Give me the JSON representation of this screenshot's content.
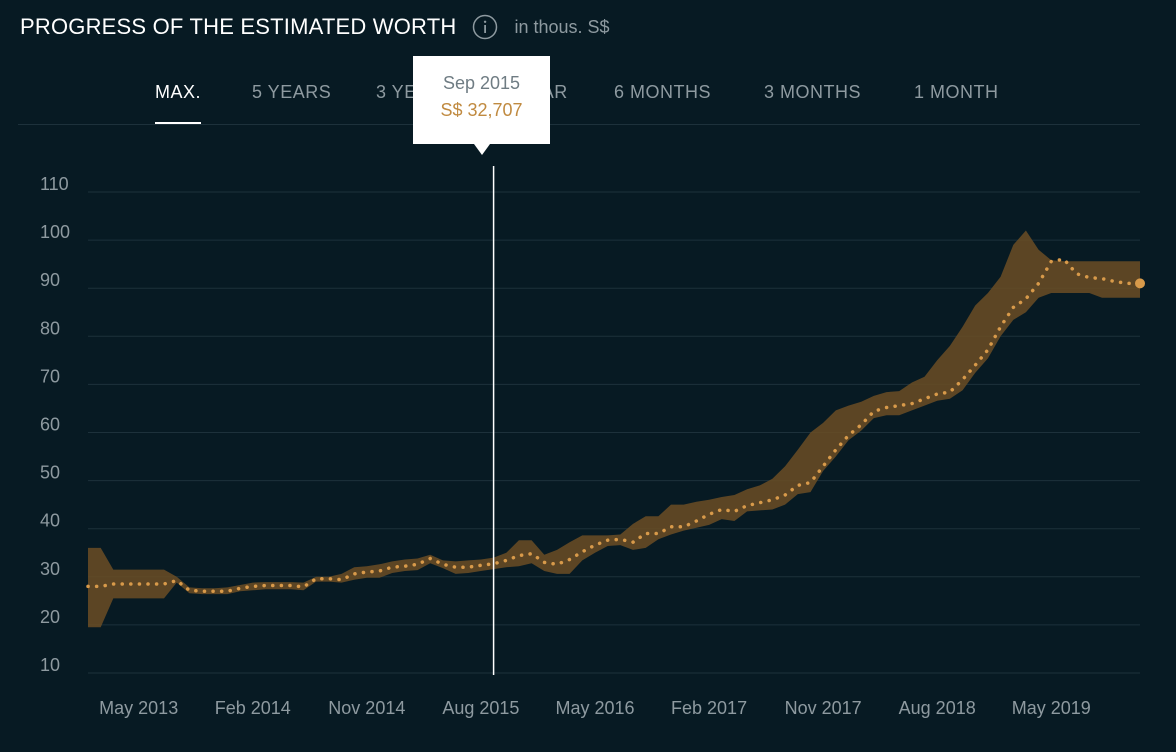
{
  "header": {
    "title": "PROGRESS OF THE ESTIMATED WORTH",
    "info_icon": "info-icon",
    "unit": "in thous. S$"
  },
  "tabs": [
    {
      "label": "MAX.",
      "active": true
    },
    {
      "label": "5 YEARS",
      "active": false
    },
    {
      "label": "3 YEARS",
      "active": false
    },
    {
      "label": "1 YEAR",
      "active": false
    },
    {
      "label": "6 MONTHS",
      "active": false
    },
    {
      "label": "3 MONTHS",
      "active": false
    },
    {
      "label": "1 MONTH",
      "active": false
    }
  ],
  "tooltip": {
    "date": "Sep 2015",
    "value": "S$ 32,707"
  },
  "colors": {
    "background": "#071a23",
    "band": "#6b4e25",
    "dots": "#d89a4a",
    "grid": "#1d313b",
    "text_muted": "#8e9aa0"
  },
  "chart_data": {
    "type": "line",
    "y_ticks": [
      10,
      20,
      30,
      40,
      50,
      60,
      70,
      80,
      90,
      100,
      110
    ],
    "ylim": [
      10,
      110
    ],
    "x_tick_labels": [
      "May 2013",
      "Feb 2014",
      "Nov 2014",
      "Aug 2015",
      "May 2016",
      "Feb 2017",
      "Nov 2017",
      "Aug 2018",
      "May 2019"
    ],
    "x_range": [
      "Jan 2013",
      "Dec 2019"
    ],
    "cursor_x": "Sep 2015",
    "series": [
      {
        "x": [
          "Jan 2013",
          "Feb 2013",
          "Mar 2013",
          "Apr 2013",
          "May 2013",
          "Jun 2013",
          "Jul 2013",
          "Aug 2013",
          "Sep 2013",
          "Oct 2013",
          "Nov 2013",
          "Dec 2013",
          "Jan 2014",
          "Feb 2014",
          "Mar 2014",
          "Apr 2014",
          "May 2014",
          "Jun 2014",
          "Jul 2014",
          "Aug 2014",
          "Sep 2014",
          "Oct 2014",
          "Nov 2014",
          "Dec 2014",
          "Jan 2015",
          "Feb 2015",
          "Mar 2015",
          "Apr 2015",
          "May 2015",
          "Jun 2015",
          "Jul 2015",
          "Aug 2015",
          "Sep 2015",
          "Oct 2015",
          "Nov 2015",
          "Dec 2015",
          "Jan 2016",
          "Feb 2016",
          "Mar 2016",
          "Apr 2016",
          "May 2016",
          "Jun 2016",
          "Jul 2016",
          "Aug 2016",
          "Sep 2016",
          "Oct 2016",
          "Nov 2016",
          "Dec 2016",
          "Jan 2017",
          "Feb 2017",
          "Mar 2017",
          "Apr 2017",
          "May 2017",
          "Jun 2017",
          "Jul 2017",
          "Aug 2017",
          "Sep 2017",
          "Oct 2017",
          "Nov 2017",
          "Dec 2017",
          "Jan 2018",
          "Feb 2018",
          "Mar 2018",
          "Apr 2018",
          "May 2018",
          "Jun 2018",
          "Jul 2018",
          "Aug 2018",
          "Sep 2018",
          "Oct 2018",
          "Nov 2018",
          "Dec 2018",
          "Jan 2019",
          "Feb 2019",
          "Mar 2019",
          "Apr 2019",
          "May 2019",
          "Jun 2019",
          "Jul 2019",
          "Aug 2019",
          "Sep 2019",
          "Oct 2019",
          "Nov 2019",
          "Dec 2019"
        ],
        "values": [
          28,
          28,
          28.5,
          28.5,
          28.5,
          28.5,
          28.5,
          29.2,
          27.2,
          27,
          27,
          27,
          27.6,
          28,
          28.2,
          28.2,
          28.2,
          27.9,
          29.6,
          29.6,
          29.4,
          30.6,
          31,
          31.2,
          32,
          32.2,
          32.6,
          33.8,
          32.6,
          32,
          32,
          32.4,
          32.7,
          33.4,
          34.4,
          34.8,
          33,
          32.6,
          33.6,
          35.2,
          36.6,
          37.6,
          37.8,
          37.2,
          39,
          39,
          40.4,
          40.4,
          41.6,
          43,
          44,
          43.6,
          44.8,
          45.4,
          46,
          47,
          49,
          49.6,
          53,
          56.4,
          59.4,
          61.6,
          64.4,
          65.2,
          65.6,
          66,
          67,
          68,
          68.4,
          71,
          74,
          77.2,
          82,
          86,
          87.8,
          91,
          95.6,
          96,
          93,
          92.2,
          92,
          91.4,
          91,
          91
        ],
        "upper": [
          36,
          36,
          31.5,
          31.5,
          31.5,
          31.5,
          31.5,
          30,
          27.8,
          27.6,
          27.6,
          27.8,
          28.3,
          28.8,
          28.9,
          28.9,
          28.9,
          28.8,
          30,
          30,
          30.6,
          32,
          32.2,
          32.6,
          33.2,
          33.6,
          33.8,
          34.6,
          33.4,
          33.2,
          33.4,
          33.6,
          34,
          35,
          37.6,
          37.6,
          34.6,
          35.6,
          37.2,
          38.6,
          38.6,
          38.6,
          38.8,
          41,
          42.6,
          42.6,
          45,
          45,
          45.6,
          46,
          46.6,
          47,
          48.2,
          49,
          50.4,
          53,
          56.4,
          60,
          62,
          64.6,
          65.6,
          66.4,
          67.6,
          68.4,
          68.6,
          70.4,
          71.6,
          75,
          78,
          82,
          86.4,
          89,
          92.4,
          99,
          102,
          98,
          95.8,
          95.6,
          95.6,
          95.6,
          95.6,
          95.6,
          95.6,
          95.6
        ],
        "lower": [
          19.5,
          19.5,
          25.5,
          25.5,
          25.5,
          25.5,
          25.5,
          28.8,
          26.6,
          26.4,
          26.4,
          26.4,
          27,
          27.2,
          27.4,
          27.4,
          27.4,
          27.2,
          29,
          29,
          28.8,
          29.4,
          29.8,
          29.8,
          30.8,
          31.2,
          31.4,
          32.8,
          31.8,
          30.6,
          30.8,
          31.2,
          31.6,
          32,
          32.2,
          32.8,
          31.2,
          30.6,
          30.6,
          33.4,
          35,
          36.4,
          36.6,
          35.6,
          36,
          37.8,
          38.8,
          39.6,
          40.2,
          40.8,
          42,
          41.6,
          43.6,
          43.8,
          44,
          45,
          47.2,
          47.6,
          52,
          55,
          58.4,
          60.4,
          63,
          63.6,
          63.6,
          64.6,
          65.6,
          66.6,
          67,
          68.8,
          72.4,
          75.4,
          80,
          83.4,
          85,
          88,
          89,
          89,
          89,
          89,
          88,
          88,
          88,
          88
        ]
      }
    ]
  }
}
